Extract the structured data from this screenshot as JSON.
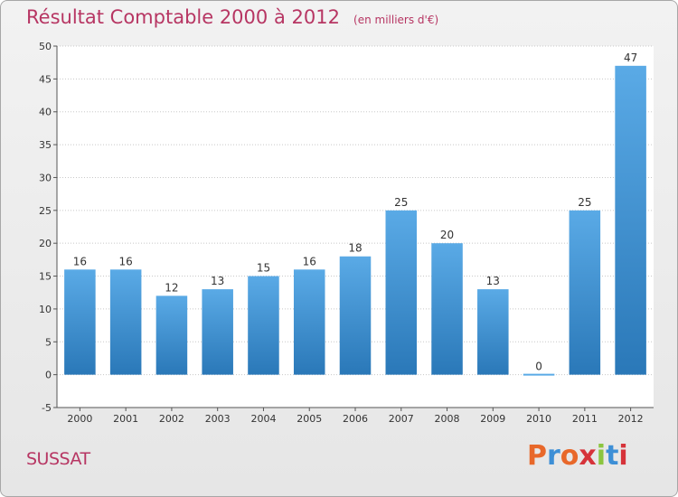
{
  "chart_data": {
    "type": "bar",
    "title": "Résultat Comptable 2000 à 2012",
    "subtitle": "(en milliers d'€)",
    "categories": [
      "2000",
      "2001",
      "2002",
      "2003",
      "2004",
      "2005",
      "2006",
      "2007",
      "2008",
      "2009",
      "2010",
      "2011",
      "2012"
    ],
    "values": [
      16,
      16,
      12,
      13,
      15,
      16,
      18,
      25,
      20,
      13,
      0,
      25,
      47
    ],
    "ylim": [
      -5,
      50
    ],
    "yticks": [
      -5,
      0,
      5,
      10,
      15,
      20,
      25,
      30,
      35,
      40,
      45,
      50
    ],
    "grid": true,
    "xlabel": "",
    "ylabel": ""
  },
  "footer": {
    "commune": "SUSSAT",
    "brand_letters": [
      "P",
      "r",
      "o",
      "x",
      "i",
      "t",
      "i"
    ],
    "brand_colors": [
      "#e8682a",
      "#3d8fd6",
      "#e8682a",
      "#d6333a",
      "#8bc53f",
      "#3d8fd6",
      "#d6333a"
    ]
  },
  "colors": {
    "accent": "#b73663",
    "bar_top": "#5aaae6",
    "bar_bottom": "#2a78b8"
  }
}
